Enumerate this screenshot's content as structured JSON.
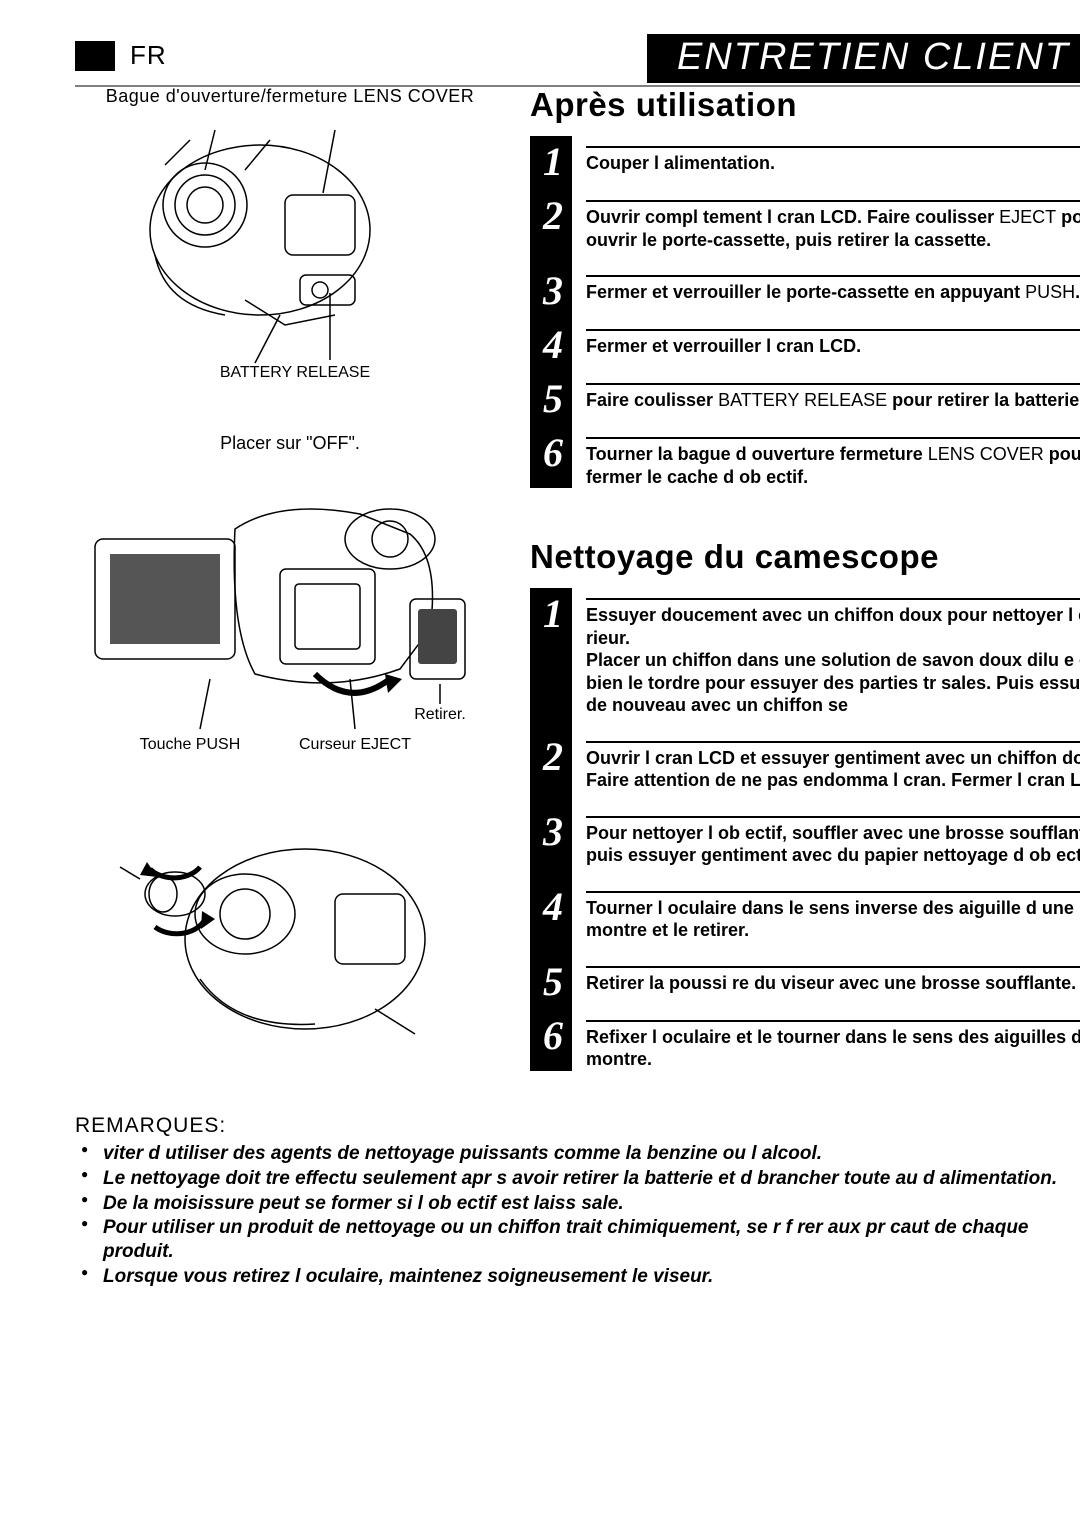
{
  "header": {
    "lang": "FR",
    "banner": "ENTRETIEN CLIENT"
  },
  "figures": {
    "fig1": {
      "top_caption": "Bague d'ouverture/fermeture LENS COVER",
      "battery_release": "BATTERY RELEASE",
      "off_caption": "Placer sur \"OFF\"."
    },
    "fig2": {
      "retirer": "Retirer.",
      "touche_push": "Touche PUSH",
      "curseur_eject": "Curseur EJECT"
    }
  },
  "sections": {
    "after_use": {
      "title": "Après utilisation",
      "steps": [
        {
          "n": "1",
          "html": "Couper l alimentation."
        },
        {
          "n": "2",
          "html": "Ouvrir compl tement l cran LCD. Faire coulisser <span class='normalup'>EJECT</span> pour ouvrir le porte-cassette, puis retirer la cassette."
        },
        {
          "n": "3",
          "html": "Fermer et verrouiller le porte-cassette en appuyant <span class='normalup'>PUSH</span>."
        },
        {
          "n": "4",
          "html": "Fermer et verrouiller l cran LCD."
        },
        {
          "n": "5",
          "html": "Faire coulisser <span class='normalup'>BATTERY RELEASE</span> pour retirer la batterie."
        },
        {
          "n": "6",
          "html": "Tourner la bague d ouverture fermeture <span class='normalup'>LENS COVER</span> pour fermer le cache d ob ectif."
        }
      ]
    },
    "cleaning": {
      "title": "Nettoyage du camescope",
      "steps": [
        {
          "n": "1",
          "html": "Essuyer doucement avec un chiffon doux pour nettoyer l ext rieur.<br>Placer un chiffon dans une solution de savon doux dilu e et bien le tordre pour essuyer des parties tr sales. Puis essuyer de nouveau avec un chiffon se"
        },
        {
          "n": "2",
          "html": "Ouvrir l cran LCD et essuyer gentiment avec un chiffon doux. Faire attention de ne pas endomma l cran. Fermer l cran LCD."
        },
        {
          "n": "3",
          "html": "Pour nettoyer l ob ectif, souffler avec une brosse soufflante, puis essuyer gentiment avec du papier nettoyage d ob ectif."
        },
        {
          "n": "4",
          "html": "Tourner l oculaire dans le sens inverse des aiguille d une montre et le retirer."
        },
        {
          "n": "5",
          "html": "Retirer la poussi re du viseur avec une brosse soufflante."
        },
        {
          "n": "6",
          "html": "Refixer l oculaire et le tourner dans le sens des aiguilles d une montre."
        }
      ]
    }
  },
  "remarques": {
    "title": "REMARQUES:",
    "items": [
      " viter d utiliser des agents de nettoyage puissants comme la benzine ou l alcool.",
      "Le nettoyage doit tre effectu seulement apr s avoir retirer la batterie et d brancher toute au d alimentation.",
      "De la moisissure peut se former si l ob ectif est laiss sale.",
      "Pour utiliser un produit de nettoyage ou un chiffon trait chimiquement, se r f rer aux pr caut de chaque produit.",
      "Lorsque vous retirez l oculaire, maintenez soigneusement le viseur."
    ]
  },
  "style": {
    "number_bg": "#000000",
    "text_color": "#000000",
    "number_color": "#ffffff"
  }
}
